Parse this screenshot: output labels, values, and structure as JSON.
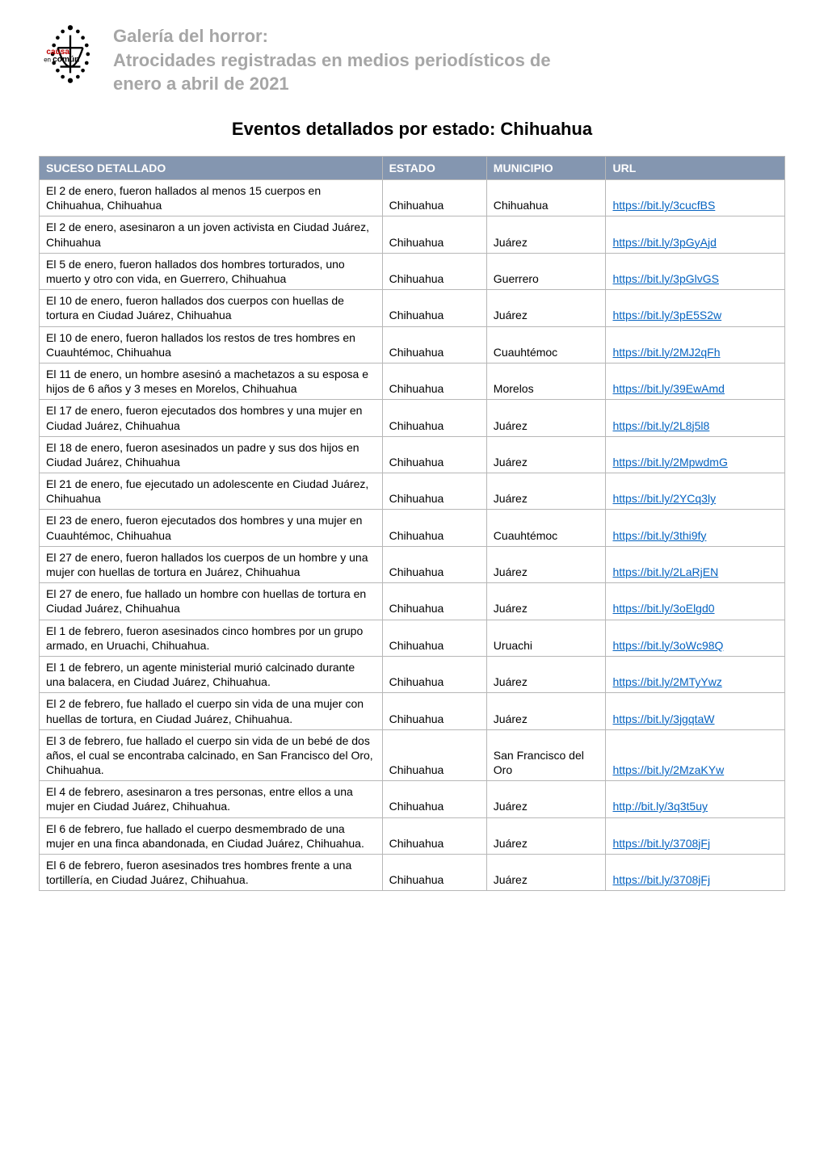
{
  "header": {
    "line1": "Galería del horror:",
    "line2": "Atrocidades registradas en medios periodísticos de",
    "line3": "enero a abril de 2021"
  },
  "subtitle": "Eventos detallados por estado: Chihuahua",
  "columns": {
    "suceso": "SUCESO DETALLADO",
    "estado": "ESTADO",
    "municipio": "MUNICIPIO",
    "url": "URL"
  },
  "rows": [
    {
      "suceso": "El 2 de enero, fueron hallados al menos 15 cuerpos en Chihuahua, Chihuahua",
      "estado": "Chihuahua",
      "municipio": "Chihuahua",
      "url": "https://bit.ly/3cucfBS"
    },
    {
      "suceso": "El 2 de enero, asesinaron a un joven activista en Ciudad Juárez, Chihuahua",
      "estado": "Chihuahua",
      "municipio": "Juárez",
      "url": "https://bit.ly/3pGyAjd"
    },
    {
      "suceso": "El 5 de enero, fueron hallados dos hombres torturados, uno muerto y otro con vida, en Guerrero, Chihuahua",
      "estado": "Chihuahua",
      "municipio": "Guerrero",
      "url": "https://bit.ly/3pGlvGS"
    },
    {
      "suceso": "El 10 de enero, fueron hallados dos cuerpos con huellas de tortura en Ciudad Juárez, Chihuahua",
      "estado": "Chihuahua",
      "municipio": "Juárez",
      "url": "https://bit.ly/3pE5S2w"
    },
    {
      "suceso": "El 10 de enero, fueron hallados los restos de tres hombres en Cuauhtémoc, Chihuahua",
      "estado": "Chihuahua",
      "municipio": "Cuauhtémoc",
      "url": "https://bit.ly/2MJ2qFh"
    },
    {
      "suceso": "El 11 de enero, un hombre asesinó a machetazos a su esposa e hijos de 6 años y 3 meses en Morelos, Chihuahua",
      "estado": "Chihuahua",
      "municipio": "Morelos",
      "url": "https://bit.ly/39EwAmd"
    },
    {
      "suceso": "El 17 de enero, fueron ejecutados dos hombres y una mujer en Ciudad Juárez, Chihuahua",
      "estado": "Chihuahua",
      "municipio": "Juárez",
      "url": "https://bit.ly/2L8j5l8"
    },
    {
      "suceso": "El 18 de enero, fueron asesinados un padre y sus dos hijos en Ciudad Juárez, Chihuahua",
      "estado": "Chihuahua",
      "municipio": "Juárez",
      "url": "https://bit.ly/2MpwdmG"
    },
    {
      "suceso": "El 21 de  enero, fue ejecutado un adolescente en Ciudad Juárez, Chihuahua",
      "estado": "Chihuahua",
      "municipio": "Juárez",
      "url": "https://bit.ly/2YCq3ly"
    },
    {
      "suceso": "El 23 de enero, fueron ejecutados dos hombres y una mujer en Cuauhtémoc, Chihuahua",
      "estado": "Chihuahua",
      "municipio": "Cuauhtémoc",
      "url": "https://bit.ly/3thi9fy"
    },
    {
      "suceso": "El 27 de enero, fueron hallados los cuerpos de un hombre y una mujer con huellas de tortura en Juárez, Chihuahua",
      "estado": "Chihuahua",
      "municipio": "Juárez",
      "url": "https://bit.ly/2LaRjEN"
    },
    {
      "suceso": "El 27 de enero, fue hallado un hombre con huellas de tortura en Ciudad Juárez, Chihuahua",
      "estado": "Chihuahua",
      "municipio": "Juárez",
      "url": "https://bit.ly/3oElgd0"
    },
    {
      "suceso": "El 1 de febrero, fueron asesinados cinco hombres por un grupo armado, en Uruachi, Chihuahua.",
      "estado": "Chihuahua",
      "municipio": "Uruachi",
      "url": "https://bit.ly/3oWc98Q"
    },
    {
      "suceso": "El 1 de febrero, un agente ministerial murió calcinado durante una balacera, en Ciudad Juárez, Chihuahua.",
      "estado": "Chihuahua",
      "municipio": "Juárez",
      "url": "https://bit.ly/2MTyYwz"
    },
    {
      "suceso": "El 2 de febrero, fue hallado el cuerpo sin vida de una mujer con huellas de tortura, en Ciudad Juárez, Chihuahua.",
      "estado": "Chihuahua",
      "municipio": "Juárez",
      "url": "https://bit.ly/3jgqtaW"
    },
    {
      "suceso": "El 3 de febrero, fue hallado el cuerpo sin vida de un bebé de dos años, el cual se encontraba calcinado, en San Francisco del Oro, Chihuahua.",
      "estado": "Chihuahua",
      "municipio": "San Francisco del Oro",
      "url": "https://bit.ly/2MzaKYw"
    },
    {
      "suceso": "El 4 de febrero, asesinaron a tres personas, entre ellos a una mujer en Ciudad Juárez, Chihuahua.",
      "estado": "Chihuahua",
      "municipio": "Juárez",
      "url": "http://bit.ly/3q3t5uy"
    },
    {
      "suceso": "El 6 de febrero, fue hallado el cuerpo desmembrado de una mujer en una finca abandonada, en Ciudad Juárez, Chihuahua.",
      "estado": "Chihuahua",
      "municipio": "Juárez",
      "url": "https://bit.ly/3708jFj"
    },
    {
      "suceso": "El 6 de febrero, fueron asesinados tres hombres frente a una tortillería, en Ciudad Juárez, Chihuahua.",
      "estado": "Chihuahua",
      "municipio": "Juárez",
      "url": "https://bit.ly/3708jFj"
    }
  ],
  "style": {
    "header_bg": "#8496b0",
    "header_fg": "#ffffff",
    "border_color": "#b7b7b7",
    "link_color": "#0563c1",
    "header_text_color": "#a6a6a6",
    "font_family": "Arial, Helvetica, sans-serif"
  }
}
